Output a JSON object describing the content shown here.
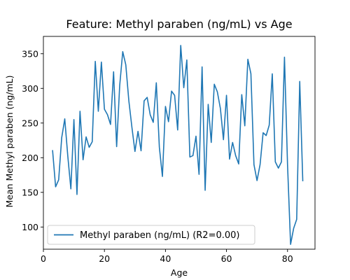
{
  "chart_data": {
    "type": "line",
    "title": "Feature: Methyl paraben (ng/mL) vs Age",
    "xlabel": "Age",
    "ylabel": "Mean Methyl paraben (ng/mL)",
    "xlim": [
      0,
      89
    ],
    "ylim": [
      68,
      375
    ],
    "xticks": [
      0,
      20,
      40,
      60,
      80
    ],
    "yticks": [
      100,
      150,
      200,
      250,
      300,
      350
    ],
    "grid": false,
    "legend_position": "lower-left",
    "series": [
      {
        "name": "Methyl paraben (ng/mL) (R2=0.00)",
        "color": "#1f77b4",
        "x": [
          3,
          4,
          5,
          6,
          7,
          8,
          9,
          10,
          11,
          12,
          13,
          14,
          15,
          16,
          17,
          18,
          19,
          20,
          21,
          22,
          23,
          24,
          25,
          26,
          27,
          28,
          29,
          30,
          31,
          32,
          33,
          34,
          35,
          36,
          37,
          38,
          39,
          40,
          41,
          42,
          43,
          44,
          45,
          46,
          47,
          48,
          49,
          50,
          51,
          52,
          53,
          54,
          55,
          56,
          57,
          58,
          59,
          60,
          61,
          62,
          63,
          64,
          65,
          66,
          67,
          68,
          69,
          70,
          71,
          72,
          73,
          74,
          75,
          76,
          77,
          78,
          79,
          80,
          81,
          82,
          83,
          84,
          85
        ],
        "values": [
          211,
          158,
          168,
          229,
          256,
          202,
          155,
          255,
          147,
          267,
          197,
          230,
          215,
          223,
          339,
          267,
          338,
          270,
          262,
          248,
          324,
          216,
          304,
          353,
          334,
          282,
          244,
          209,
          238,
          210,
          282,
          287,
          262,
          251,
          308,
          215,
          173,
          274,
          252,
          296,
          290,
          240,
          362,
          301,
          341,
          201,
          203,
          231,
          176,
          331,
          153,
          277,
          222,
          306,
          295,
          271,
          226,
          290,
          198,
          222,
          203,
          191,
          291,
          246,
          342,
          321,
          190,
          167,
          190,
          236,
          232,
          247,
          321,
          194,
          185,
          194,
          345,
          190,
          75,
          98,
          111,
          310,
          166
        ]
      }
    ]
  }
}
